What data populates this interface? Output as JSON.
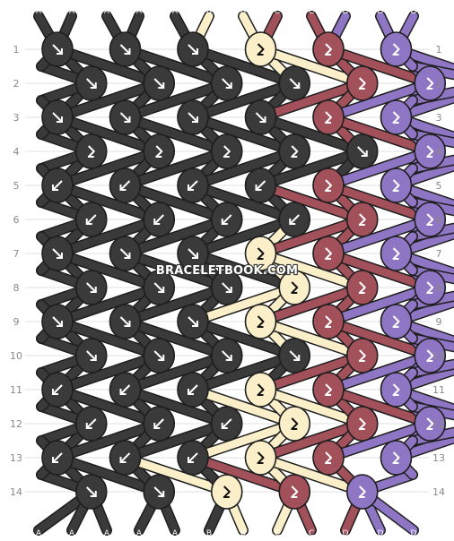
{
  "watermark": "BRACELETBOOK.COM",
  "strings": [
    "A",
    "A",
    "A",
    "A",
    "A",
    "B",
    "B",
    "C",
    "C",
    "D",
    "D",
    "D"
  ],
  "colors": {
    "A": "#3a3a3a",
    "B": "#fbefca",
    "C": "#a2505a",
    "D": "#8f76c4"
  },
  "row_labels": [
    "1",
    "2",
    "3",
    "4",
    "5",
    "6",
    "7",
    "8",
    "9",
    "10",
    "11",
    "12",
    "13",
    "14"
  ],
  "icons": {
    "se": "arrow-down-right-icon",
    "sw": "arrow-down-left-icon",
    "ff": "forward-backward-icon"
  },
  "knots": [
    [
      {
        "c": "A",
        "t": "se"
      },
      {
        "c": "A",
        "t": "se"
      },
      {
        "c": "A",
        "t": "se"
      },
      {
        "c": "B",
        "t": "ff"
      },
      {
        "c": "C",
        "t": "ff"
      },
      {
        "c": "D",
        "t": "ff"
      }
    ],
    [
      {
        "c": "A",
        "t": "se"
      },
      {
        "c": "A",
        "t": "se"
      },
      {
        "c": "A",
        "t": "se"
      },
      {
        "c": "A",
        "t": "se"
      },
      {
        "c": "C",
        "t": "ff"
      },
      {
        "c": "D",
        "t": "ff"
      },
      {
        "c": "D",
        "t": "ff"
      }
    ],
    [
      {
        "c": "A",
        "t": "se"
      },
      {
        "c": "A",
        "t": "se"
      },
      {
        "c": "A",
        "t": "se"
      },
      {
        "c": "A",
        "t": "se"
      },
      {
        "c": "C",
        "t": "ff"
      },
      {
        "c": "D",
        "t": "ff"
      }
    ],
    [
      {
        "c": "A",
        "t": "ff"
      },
      {
        "c": "A",
        "t": "ff"
      },
      {
        "c": "A",
        "t": "ff"
      },
      {
        "c": "A",
        "t": "ff"
      },
      {
        "c": "A",
        "t": "se"
      },
      {
        "c": "D",
        "t": "ff"
      },
      {
        "c": "D",
        "t": "ff"
      }
    ],
    [
      {
        "c": "A",
        "t": "sw"
      },
      {
        "c": "A",
        "t": "sw"
      },
      {
        "c": "A",
        "t": "sw"
      },
      {
        "c": "A",
        "t": "sw"
      },
      {
        "c": "C",
        "t": "ff"
      },
      {
        "c": "D",
        "t": "ff"
      }
    ],
    [
      {
        "c": "A",
        "t": "sw"
      },
      {
        "c": "A",
        "t": "sw"
      },
      {
        "c": "A",
        "t": "sw"
      },
      {
        "c": "A",
        "t": "sw"
      },
      {
        "c": "C",
        "t": "ff"
      },
      {
        "c": "D",
        "t": "ff"
      },
      {
        "c": "D",
        "t": "ff"
      }
    ],
    [
      {
        "c": "A",
        "t": "se"
      },
      {
        "c": "A",
        "t": "se"
      },
      {
        "c": "A",
        "t": "se"
      },
      {
        "c": "B",
        "t": "ff"
      },
      {
        "c": "C",
        "t": "ff"
      },
      {
        "c": "D",
        "t": "ff"
      }
    ],
    [
      {
        "c": "A",
        "t": "se"
      },
      {
        "c": "A",
        "t": "se"
      },
      {
        "c": "A",
        "t": "se"
      },
      {
        "c": "B",
        "t": "ff"
      },
      {
        "c": "C",
        "t": "ff"
      },
      {
        "c": "D",
        "t": "ff"
      },
      {
        "c": "D",
        "t": "ff"
      }
    ],
    [
      {
        "c": "A",
        "t": "se"
      },
      {
        "c": "A",
        "t": "se"
      },
      {
        "c": "A",
        "t": "se"
      },
      {
        "c": "B",
        "t": "ff"
      },
      {
        "c": "C",
        "t": "ff"
      },
      {
        "c": "D",
        "t": "ff"
      }
    ],
    [
      {
        "c": "A",
        "t": "se"
      },
      {
        "c": "A",
        "t": "se"
      },
      {
        "c": "A",
        "t": "se"
      },
      {
        "c": "A",
        "t": "se"
      },
      {
        "c": "C",
        "t": "ff"
      },
      {
        "c": "D",
        "t": "ff"
      },
      {
        "c": "D",
        "t": "ff"
      }
    ],
    [
      {
        "c": "A",
        "t": "sw"
      },
      {
        "c": "A",
        "t": "sw"
      },
      {
        "c": "A",
        "t": "sw"
      },
      {
        "c": "B",
        "t": "ff"
      },
      {
        "c": "C",
        "t": "ff"
      },
      {
        "c": "D",
        "t": "ff"
      }
    ],
    [
      {
        "c": "A",
        "t": "sw"
      },
      {
        "c": "A",
        "t": "sw"
      },
      {
        "c": "A",
        "t": "sw"
      },
      {
        "c": "B",
        "t": "ff"
      },
      {
        "c": "C",
        "t": "ff"
      },
      {
        "c": "D",
        "t": "ff"
      },
      {
        "c": "D",
        "t": "ff"
      }
    ],
    [
      {
        "c": "A",
        "t": "sw"
      },
      {
        "c": "A",
        "t": "sw"
      },
      {
        "c": "A",
        "t": "sw"
      },
      {
        "c": "B",
        "t": "ff"
      },
      {
        "c": "C",
        "t": "ff"
      },
      {
        "c": "D",
        "t": "ff"
      }
    ],
    [
      {
        "c": "A",
        "t": "se"
      },
      {
        "c": "A",
        "t": "se"
      },
      {
        "c": "B",
        "t": "ff"
      },
      {
        "c": "C",
        "t": "ff"
      },
      {
        "c": "D",
        "t": "ff"
      }
    ]
  ]
}
